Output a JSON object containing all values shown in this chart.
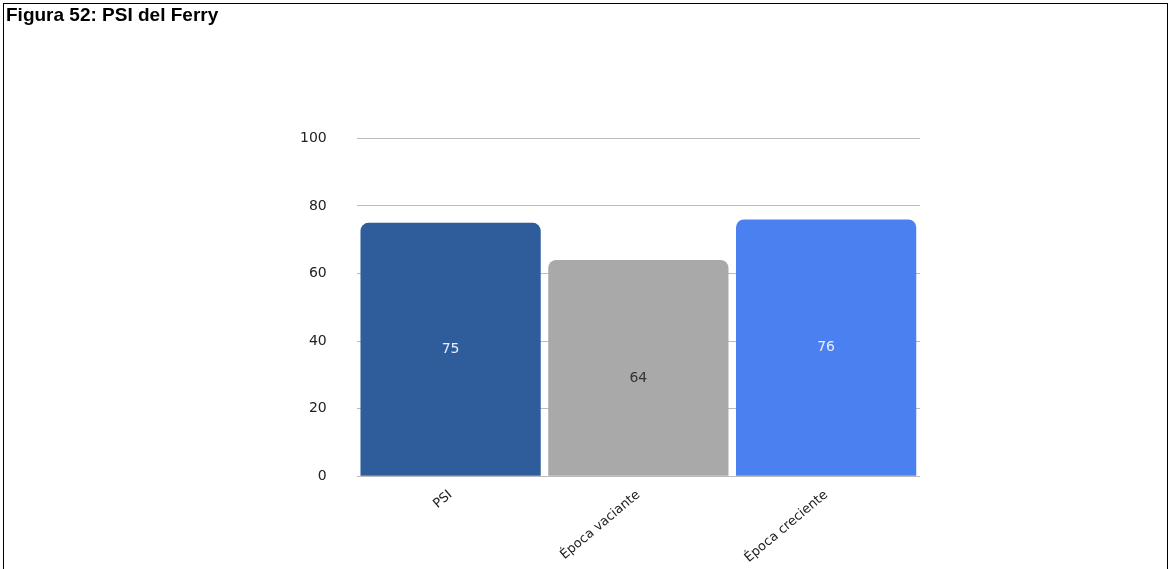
{
  "chart_data": {
    "type": "bar",
    "title": "Figura 52: PSI del Ferry",
    "categories": [
      "PSI",
      "Época vaciante",
      "Época creciente"
    ],
    "values": [
      75,
      64,
      76
    ],
    "colors": [
      "#2f5d9c",
      "#a9a9a9",
      "#4b80f0"
    ],
    "ylim": [
      0,
      100
    ],
    "yticks": [
      0,
      20,
      40,
      60,
      80,
      100
    ],
    "grid": "y",
    "data_labels": true
  }
}
